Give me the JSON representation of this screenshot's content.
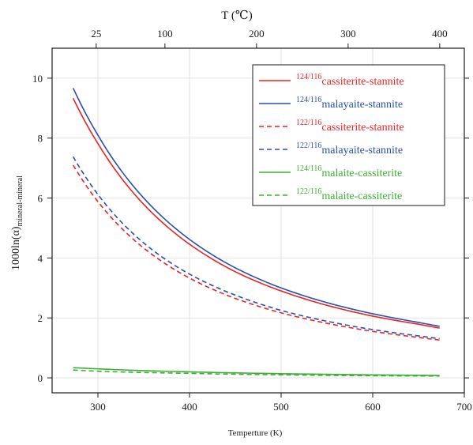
{
  "chart_data": {
    "type": "line",
    "xlabel": "Temperture (K)",
    "ylabel_main": "1000ln(α)",
    "ylabel_sub": "mineral-mineral",
    "top_axis_label": "T (℃)",
    "xlim": [
      250,
      700
    ],
    "ylim": [
      -0.5,
      11
    ],
    "x_ticks": [
      300,
      400,
      500,
      600,
      700
    ],
    "y_ticks": [
      0,
      2,
      4,
      6,
      8,
      10
    ],
    "top_ticks": [
      25,
      100,
      200,
      300,
      400
    ],
    "grid": true,
    "legend_position": "top-right",
    "series": [
      {
        "name": "cassiterite-stannite",
        "name_sup": "124/116",
        "color": "#ee2222",
        "dash": "solid",
        "x": [
          273,
          300,
          350,
          400,
          450,
          500,
          550,
          600,
          650,
          673
        ],
        "y": [
          9.33,
          7.82,
          5.79,
          4.46,
          3.54,
          2.9,
          2.42,
          2.06,
          1.79,
          1.66
        ]
      },
      {
        "name": "malayaite-stannite",
        "name_sup": "124/116",
        "color": "#2a4fb0",
        "dash": "solid",
        "x": [
          273,
          300,
          350,
          400,
          450,
          500,
          550,
          600,
          650,
          673
        ],
        "y": [
          9.67,
          8.1,
          6.0,
          4.62,
          3.67,
          3.0,
          2.51,
          2.14,
          1.85,
          1.72
        ]
      },
      {
        "name": "cassiterite-stannite",
        "name_sup": "122/116",
        "color": "#ee2222",
        "dash": "dashed",
        "x": [
          273,
          300,
          350,
          400,
          450,
          500,
          550,
          600,
          650,
          673
        ],
        "y": [
          7.1,
          5.88,
          4.33,
          3.33,
          2.65,
          2.17,
          1.82,
          1.55,
          1.35,
          1.26
        ]
      },
      {
        "name": "malayaite-stannite",
        "name_sup": "122/116",
        "color": "#2a4fb0",
        "dash": "dashed",
        "x": [
          273,
          300,
          350,
          400,
          450,
          500,
          550,
          600,
          650,
          673
        ],
        "y": [
          7.38,
          6.12,
          4.5,
          3.46,
          2.76,
          2.25,
          1.89,
          1.61,
          1.4,
          1.31
        ]
      },
      {
        "name": "malaite-cassiterite",
        "name_sup": "124/116",
        "color": "#3cb032",
        "dash": "solid",
        "x": [
          273,
          300,
          400,
          500,
          600,
          673
        ],
        "y": [
          0.34,
          0.3,
          0.2,
          0.14,
          0.1,
          0.08
        ]
      },
      {
        "name": "malaite-cassiterite",
        "name_sup": "122/116",
        "color": "#3cb032",
        "dash": "dashed",
        "x": [
          273,
          300,
          400,
          500,
          600,
          673
        ],
        "y": [
          0.26,
          0.22,
          0.15,
          0.1,
          0.07,
          0.06
        ]
      }
    ]
  }
}
